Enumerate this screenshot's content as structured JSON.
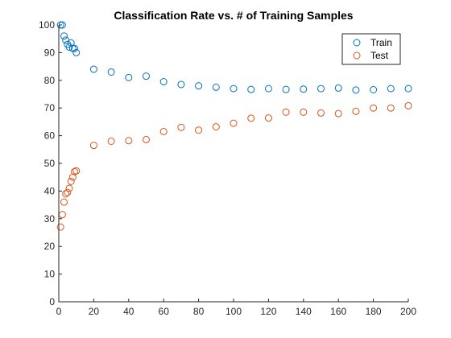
{
  "chart_data": {
    "type": "scatter",
    "title": "Classification Rate vs. # of Training Samples",
    "xlabel": "",
    "ylabel": "",
    "xlim": [
      0,
      200
    ],
    "ylim": [
      0,
      100
    ],
    "xticks": [
      0,
      20,
      40,
      60,
      80,
      100,
      120,
      140,
      160,
      180,
      200
    ],
    "yticks": [
      0,
      10,
      20,
      30,
      40,
      50,
      60,
      70,
      80,
      90,
      100
    ],
    "grid": false,
    "legend_position": "top-right",
    "marker": "circle-open",
    "series": [
      {
        "name": "Train",
        "color": "#0072BD",
        "points": [
          [
            1,
            100
          ],
          [
            2,
            100
          ],
          [
            3,
            96
          ],
          [
            4,
            94.5
          ],
          [
            5,
            93
          ],
          [
            6,
            92
          ],
          [
            7,
            93.5
          ],
          [
            8,
            91.5
          ],
          [
            9,
            91.5
          ],
          [
            10,
            90
          ],
          [
            20,
            84
          ],
          [
            30,
            83
          ],
          [
            40,
            81
          ],
          [
            50,
            81.5
          ],
          [
            60,
            79.5
          ],
          [
            70,
            78.5
          ],
          [
            80,
            78
          ],
          [
            90,
            77.5
          ],
          [
            100,
            77
          ],
          [
            110,
            76.7
          ],
          [
            120,
            77
          ],
          [
            130,
            76.7
          ],
          [
            140,
            76.8
          ],
          [
            150,
            77
          ],
          [
            160,
            77.2
          ],
          [
            170,
            76.5
          ],
          [
            180,
            76.6
          ],
          [
            190,
            77
          ],
          [
            200,
            77
          ]
        ]
      },
      {
        "name": "Test",
        "color": "#D95319",
        "points": [
          [
            1,
            27
          ],
          [
            2,
            31.5
          ],
          [
            3,
            36
          ],
          [
            4,
            39
          ],
          [
            5,
            39.5
          ],
          [
            6,
            41
          ],
          [
            7,
            43.5
          ],
          [
            8,
            45
          ],
          [
            9,
            47
          ],
          [
            10,
            47.3
          ],
          [
            20,
            56.5
          ],
          [
            30,
            58
          ],
          [
            40,
            58.2
          ],
          [
            50,
            58.6
          ],
          [
            60,
            61.5
          ],
          [
            70,
            63
          ],
          [
            80,
            62
          ],
          [
            90,
            63.2
          ],
          [
            100,
            64.5
          ],
          [
            110,
            66.3
          ],
          [
            120,
            66.4
          ],
          [
            130,
            68.5
          ],
          [
            140,
            68.5
          ],
          [
            150,
            68.2
          ],
          [
            160,
            68
          ],
          [
            170,
            68.8
          ],
          [
            180,
            70
          ],
          [
            190,
            70
          ],
          [
            200,
            70.8
          ]
        ]
      }
    ]
  }
}
